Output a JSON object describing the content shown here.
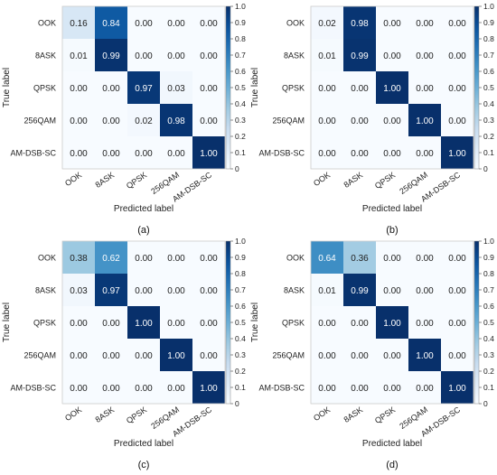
{
  "chart_data": [
    {
      "type": "heatmap",
      "panel_label": "(a)",
      "xlabel": "Predicted label",
      "ylabel": "True label",
      "x_categories": [
        "OOK",
        "8ASK",
        "QPSK",
        "256QAM",
        "AM-DSB-SC"
      ],
      "y_categories": [
        "OOK",
        "8ASK",
        "QPSK",
        "256QAM",
        "AM-DSB-SC"
      ],
      "values": [
        [
          0.16,
          0.84,
          0.0,
          0.0,
          0.0
        ],
        [
          0.01,
          0.99,
          0.0,
          0.0,
          0.0
        ],
        [
          0.0,
          0.0,
          0.97,
          0.03,
          0.0
        ],
        [
          0.0,
          0.0,
          0.02,
          0.98,
          0.0
        ],
        [
          0.0,
          0.0,
          0.0,
          0.0,
          1.0
        ]
      ],
      "colorbar_ticks": [
        "0",
        "0.1",
        "0.2",
        "0.3",
        "0.4",
        "0.5",
        "0.6",
        "0.7",
        "0.8",
        "0.9",
        "1.0"
      ],
      "colorbar_range": [
        0,
        1
      ]
    },
    {
      "type": "heatmap",
      "panel_label": "(b)",
      "xlabel": "Predicted label",
      "ylabel": "True label",
      "x_categories": [
        "OOK",
        "8ASK",
        "QPSK",
        "256QAM",
        "AM-DSB-SC"
      ],
      "y_categories": [
        "OOK",
        "8ASK",
        "QPSK",
        "256QAM",
        "AM-DSB-SC"
      ],
      "values": [
        [
          0.02,
          0.98,
          0.0,
          0.0,
          0.0
        ],
        [
          0.01,
          0.99,
          0.0,
          0.0,
          0.0
        ],
        [
          0.0,
          0.0,
          1.0,
          0.0,
          0.0
        ],
        [
          0.0,
          0.0,
          0.0,
          1.0,
          0.0
        ],
        [
          0.0,
          0.0,
          0.0,
          0.0,
          1.0
        ]
      ],
      "colorbar_ticks": [
        "0",
        "0.1",
        "0.2",
        "0.3",
        "0.4",
        "0.5",
        "0.6",
        "0.7",
        "0.8",
        "0.9",
        "1.0"
      ],
      "colorbar_range": [
        0,
        1
      ]
    },
    {
      "type": "heatmap",
      "panel_label": "(c)",
      "xlabel": "Predicted label",
      "ylabel": "True label",
      "x_categories": [
        "OOK",
        "8ASK",
        "QPSK",
        "256QAM",
        "AM-DSB-SC"
      ],
      "y_categories": [
        "OOK",
        "8ASK",
        "QPSK",
        "256QAM",
        "AM-DSB-SC"
      ],
      "values": [
        [
          0.38,
          0.62,
          0.0,
          0.0,
          0.0
        ],
        [
          0.03,
          0.97,
          0.0,
          0.0,
          0.0
        ],
        [
          0.0,
          0.0,
          1.0,
          0.0,
          0.0
        ],
        [
          0.0,
          0.0,
          0.0,
          1.0,
          0.0
        ],
        [
          0.0,
          0.0,
          0.0,
          0.0,
          1.0
        ]
      ],
      "colorbar_ticks": [
        "0",
        "0.1",
        "0.2",
        "0.3",
        "0.4",
        "0.5",
        "0.6",
        "0.7",
        "0.8",
        "0.9",
        "1.0"
      ],
      "colorbar_range": [
        0,
        1
      ]
    },
    {
      "type": "heatmap",
      "panel_label": "(d)",
      "xlabel": "Predicted label",
      "ylabel": "True label",
      "x_categories": [
        "OOK",
        "8ASK",
        "QPSK",
        "256QAM",
        "AM-DSB-SC"
      ],
      "y_categories": [
        "OOK",
        "8ASK",
        "QPSK",
        "256QAM",
        "AM-DSB-SC"
      ],
      "values": [
        [
          0.64,
          0.36,
          0.0,
          0.0,
          0.0
        ],
        [
          0.01,
          0.99,
          0.0,
          0.0,
          0.0
        ],
        [
          0.0,
          0.0,
          1.0,
          0.0,
          0.0
        ],
        [
          0.0,
          0.0,
          0.0,
          1.0,
          0.0
        ],
        [
          0.0,
          0.0,
          0.0,
          0.0,
          1.0
        ]
      ],
      "colorbar_ticks": [
        "0",
        "0.1",
        "0.2",
        "0.3",
        "0.4",
        "0.5",
        "0.6",
        "0.7",
        "0.8",
        "0.9",
        "1.0"
      ],
      "colorbar_range": [
        0,
        1
      ]
    }
  ]
}
